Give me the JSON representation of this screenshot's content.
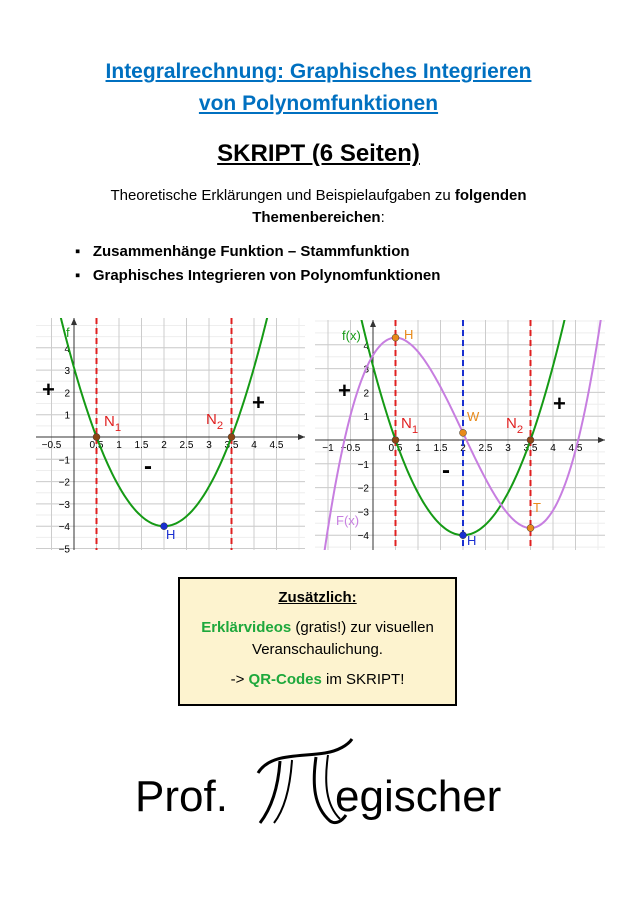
{
  "title_lines": [
    "Integralrechnung: Graphisches Integrieren",
    "von Polynomfunktionen"
  ],
  "subtitle": "SKRIPT (6 Seiten)",
  "intro": [
    "Theoretische Erklärungen und Beispielaufgaben zu ",
    "folgenden",
    "Themenbereichen",
    ":"
  ],
  "bullets": [
    "Zusammenhänge Funktion – Stammfunktion",
    "Graphisches Integrieren von Polynomfunktionen"
  ],
  "graph1": {
    "xticks": [
      {
        "value": -0.5,
        "label": "−0.5"
      },
      0.5,
      1,
      1.5,
      2,
      2.5,
      3,
      3.5,
      4,
      4.5
    ],
    "yticks": [
      4,
      3,
      2,
      1,
      {
        "value": -1,
        "label": "−1"
      },
      {
        "value": -2,
        "label": "−2"
      },
      {
        "value": -3,
        "label": "−3"
      },
      {
        "value": -4,
        "label": "−4"
      },
      {
        "value": -5,
        "label": "−5"
      }
    ],
    "labels": [
      {
        "text": "f"
      },
      {
        "text": "N",
        "sub": "1"
      },
      {
        "text": "N",
        "sub": "2"
      },
      {
        "text": "H"
      },
      {
        "text": "+"
      },
      {
        "text": "+"
      },
      {
        "text": "-"
      }
    ]
  },
  "graph2": {
    "xticks": [
      {
        "value": -1,
        "label": "−1"
      },
      {
        "value": -0.5,
        "label": "−0.5"
      },
      0.5,
      1,
      1.5,
      2,
      2.5,
      3,
      3.5,
      4,
      4.5
    ],
    "yticks": [
      4,
      3,
      2,
      1,
      {
        "value": -1,
        "label": "−1"
      },
      {
        "value": -2,
        "label": "−2"
      },
      {
        "value": -3,
        "label": "−3"
      },
      {
        "value": -4,
        "label": "−4"
      }
    ],
    "labels": [
      {
        "text": "f(x)"
      },
      {
        "text": "H"
      },
      {
        "text": "W"
      },
      {
        "text": "N",
        "sub": "1"
      },
      {
        "text": "N",
        "sub": "2"
      },
      {
        "text": "T"
      },
      {
        "text": "H"
      },
      {
        "text": "F(x)"
      },
      {
        "text": "+"
      },
      {
        "text": "+"
      },
      {
        "text": "-"
      }
    ]
  },
  "box": {
    "heading": "Zusätzlich:",
    "line1": [
      "Erklärvideos",
      " (gratis!) zur visuellen"
    ],
    "line2": "Veranschaulichung.",
    "line3": [
      "-> ",
      "QR-Codes",
      " im SKRIPT!"
    ]
  },
  "logo": {
    "prefix": "Prof.",
    "suffix": "egischer"
  }
}
